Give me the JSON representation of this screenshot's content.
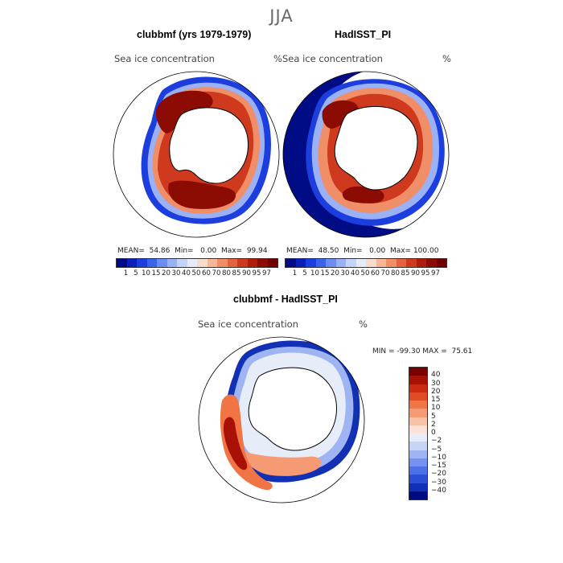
{
  "season": "JJA",
  "panels": [
    {
      "title": "clubbmf (yrs 1979-1979)",
      "variable": "Sea ice concentration",
      "units": "%",
      "stats": "MEAN=  54.86  Min=   0.00  Max=  99.94"
    },
    {
      "title": "HadISST_PI",
      "variable": "Sea ice concentration",
      "units": "%",
      "stats": "MEAN=  48.50  Min=   0.00  Max= 100.00"
    }
  ],
  "diff_panel": {
    "title": "clubbmf - HadISST_PI",
    "variable": "Sea ice concentration",
    "units": "%",
    "stats": "MIN = -99.30 MAX =  75.61"
  },
  "abs_colorbar": {
    "labels": [
      "1",
      "5",
      "10",
      "15",
      "20",
      "30",
      "40",
      "50",
      "60",
      "70",
      "80",
      "85",
      "90",
      "95",
      "97"
    ],
    "colors": [
      "#000c85",
      "#0a1fb8",
      "#1c3ede",
      "#3a63ec",
      "#6b8cf2",
      "#9ab1f6",
      "#c4d4f8",
      "#e6ecf7",
      "#f8dccb",
      "#f6b796",
      "#f08e67",
      "#e4623e",
      "#cf3a1f",
      "#b01d0a",
      "#8c0b03",
      "#6e0000"
    ]
  },
  "diff_colorbar": {
    "labels": [
      "40",
      "30",
      "20",
      "15",
      "10",
      "5",
      "2",
      "0",
      "−2",
      "−5",
      "−10",
      "−15",
      "−20",
      "−30",
      "−40"
    ],
    "colors": [
      "#7a0000",
      "#a81206",
      "#cc2a12",
      "#e24a26",
      "#f07444",
      "#f59a72",
      "#f8c2a6",
      "#fae2d6",
      "#e7edf8",
      "#c6d5f6",
      "#9fb5f3",
      "#7593ee",
      "#4d70e6",
      "#2a4fd6",
      "#1230b4",
      "#000a80"
    ]
  },
  "colors": {
    "land": "#ffffff",
    "open_ocean": "#ffffff"
  }
}
